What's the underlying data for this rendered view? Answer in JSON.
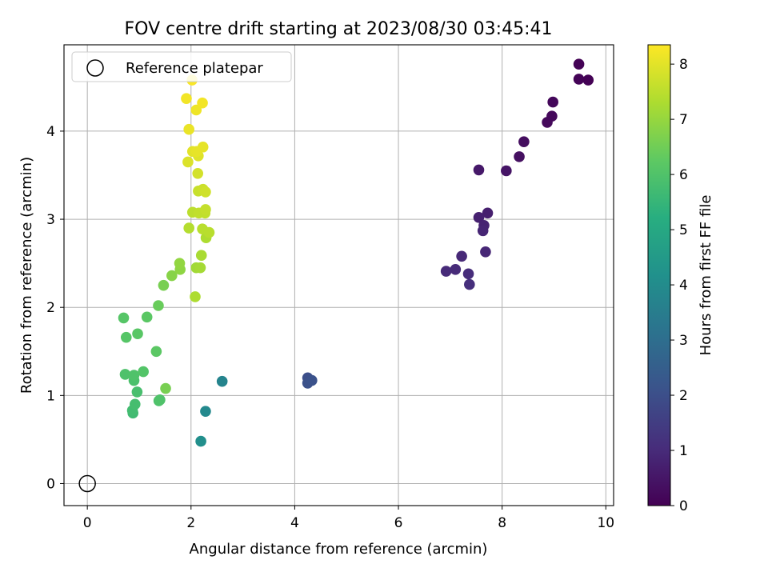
{
  "chart_data": {
    "type": "scatter",
    "title": "FOV centre drift starting at 2023/08/30 03:45:41",
    "xlabel": "Angular distance from reference (arcmin)",
    "ylabel": "Rotation from reference (arcmin)",
    "xlim": [
      -0.45,
      10.15
    ],
    "ylim": [
      -0.25,
      4.98
    ],
    "x_ticks": [
      "0",
      "2",
      "4",
      "6",
      "8",
      "10"
    ],
    "y_ticks": [
      "0",
      "1",
      "2",
      "3",
      "4"
    ],
    "grid": true,
    "legend": {
      "placement": "top-left",
      "entries": [
        "Reference platepar"
      ]
    },
    "colorbar": {
      "label": "Hours from first FF file",
      "range": [
        0,
        8.35
      ],
      "ticks": [
        "0",
        "1",
        "2",
        "3",
        "4",
        "5",
        "6",
        "7",
        "8"
      ],
      "colormap": "viridis"
    },
    "reference_point": {
      "x": 0,
      "y": 0,
      "label": "Reference platepar"
    },
    "series": [
      {
        "points": [
          {
            "x": 9.48,
            "y": 4.76,
            "c": 0.05
          },
          {
            "x": 9.48,
            "y": 4.59,
            "c": 0.07
          },
          {
            "x": 9.66,
            "y": 4.58,
            "c": 0.03
          },
          {
            "x": 8.98,
            "y": 4.33,
            "c": 0.15
          },
          {
            "x": 8.96,
            "y": 4.17,
            "c": 0.18
          },
          {
            "x": 8.87,
            "y": 4.1,
            "c": 0.2
          },
          {
            "x": 8.42,
            "y": 3.88,
            "c": 0.3
          },
          {
            "x": 8.33,
            "y": 3.71,
            "c": 0.35
          },
          {
            "x": 8.08,
            "y": 3.55,
            "c": 0.45
          },
          {
            "x": 7.55,
            "y": 3.56,
            "c": 0.55
          },
          {
            "x": 7.72,
            "y": 3.07,
            "c": 0.7
          },
          {
            "x": 7.55,
            "y": 3.02,
            "c": 0.75
          },
          {
            "x": 7.65,
            "y": 2.93,
            "c": 0.8
          },
          {
            "x": 7.63,
            "y": 2.87,
            "c": 0.85
          },
          {
            "x": 7.68,
            "y": 2.63,
            "c": 0.9
          },
          {
            "x": 7.22,
            "y": 2.58,
            "c": 0.95
          },
          {
            "x": 7.1,
            "y": 2.43,
            "c": 1.0
          },
          {
            "x": 6.92,
            "y": 2.41,
            "c": 1.0
          },
          {
            "x": 7.35,
            "y": 2.38,
            "c": 1.05
          },
          {
            "x": 7.37,
            "y": 2.26,
            "c": 1.1
          },
          {
            "x": 4.25,
            "y": 1.2,
            "c": 2.0
          },
          {
            "x": 4.25,
            "y": 1.14,
            "c": 2.05
          },
          {
            "x": 4.33,
            "y": 1.17,
            "c": 2.1
          },
          {
            "x": 2.6,
            "y": 1.16,
            "c": 3.75
          },
          {
            "x": 2.28,
            "y": 0.82,
            "c": 3.9
          },
          {
            "x": 2.19,
            "y": 0.48,
            "c": 4.1
          },
          {
            "x": 0.88,
            "y": 0.8,
            "c": 5.7
          },
          {
            "x": 0.87,
            "y": 0.83,
            "c": 5.75
          },
          {
            "x": 0.92,
            "y": 0.9,
            "c": 5.8
          },
          {
            "x": 0.96,
            "y": 1.04,
            "c": 5.85
          },
          {
            "x": 1.38,
            "y": 0.94,
            "c": 5.95
          },
          {
            "x": 1.4,
            "y": 0.95,
            "c": 6.0
          },
          {
            "x": 0.9,
            "y": 1.17,
            "c": 5.9
          },
          {
            "x": 0.73,
            "y": 1.24,
            "c": 5.95
          },
          {
            "x": 0.9,
            "y": 1.23,
            "c": 6.0
          },
          {
            "x": 1.08,
            "y": 1.27,
            "c": 6.05
          },
          {
            "x": 1.51,
            "y": 1.08,
            "c": 6.6
          },
          {
            "x": 1.33,
            "y": 1.5,
            "c": 6.2
          },
          {
            "x": 0.75,
            "y": 1.66,
            "c": 6.1
          },
          {
            "x": 0.97,
            "y": 1.7,
            "c": 6.15
          },
          {
            "x": 0.7,
            "y": 1.88,
            "c": 6.1
          },
          {
            "x": 1.15,
            "y": 1.89,
            "c": 6.2
          },
          {
            "x": 1.37,
            "y": 2.02,
            "c": 6.4
          },
          {
            "x": 1.47,
            "y": 2.25,
            "c": 6.6
          },
          {
            "x": 1.63,
            "y": 2.36,
            "c": 6.8
          },
          {
            "x": 1.79,
            "y": 2.43,
            "c": 6.9
          },
          {
            "x": 1.78,
            "y": 2.5,
            "c": 6.95
          },
          {
            "x": 2.1,
            "y": 2.45,
            "c": 7.15
          },
          {
            "x": 2.18,
            "y": 2.45,
            "c": 7.2
          },
          {
            "x": 2.2,
            "y": 2.59,
            "c": 7.25
          },
          {
            "x": 2.08,
            "y": 2.12,
            "c": 7.3
          },
          {
            "x": 2.29,
            "y": 2.79,
            "c": 7.3
          },
          {
            "x": 1.96,
            "y": 2.9,
            "c": 7.4
          },
          {
            "x": 2.22,
            "y": 2.89,
            "c": 7.45
          },
          {
            "x": 2.35,
            "y": 2.85,
            "c": 7.45
          },
          {
            "x": 2.03,
            "y": 3.08,
            "c": 7.5
          },
          {
            "x": 2.15,
            "y": 3.07,
            "c": 7.55
          },
          {
            "x": 2.27,
            "y": 3.07,
            "c": 7.55
          },
          {
            "x": 2.28,
            "y": 3.11,
            "c": 7.6
          },
          {
            "x": 2.14,
            "y": 3.32,
            "c": 7.65
          },
          {
            "x": 2.23,
            "y": 3.34,
            "c": 7.7
          },
          {
            "x": 2.28,
            "y": 3.31,
            "c": 7.75
          },
          {
            "x": 2.13,
            "y": 3.52,
            "c": 7.8
          },
          {
            "x": 1.94,
            "y": 3.65,
            "c": 7.9
          },
          {
            "x": 2.14,
            "y": 3.72,
            "c": 7.95
          },
          {
            "x": 2.03,
            "y": 3.77,
            "c": 8.0
          },
          {
            "x": 2.11,
            "y": 3.77,
            "c": 8.05
          },
          {
            "x": 2.23,
            "y": 3.82,
            "c": 8.05
          },
          {
            "x": 1.96,
            "y": 4.02,
            "c": 8.1
          },
          {
            "x": 2.1,
            "y": 4.24,
            "c": 8.15
          },
          {
            "x": 2.22,
            "y": 4.32,
            "c": 8.2
          },
          {
            "x": 1.91,
            "y": 4.37,
            "c": 8.2
          },
          {
            "x": 2.02,
            "y": 4.58,
            "c": 8.3
          }
        ]
      }
    ]
  }
}
